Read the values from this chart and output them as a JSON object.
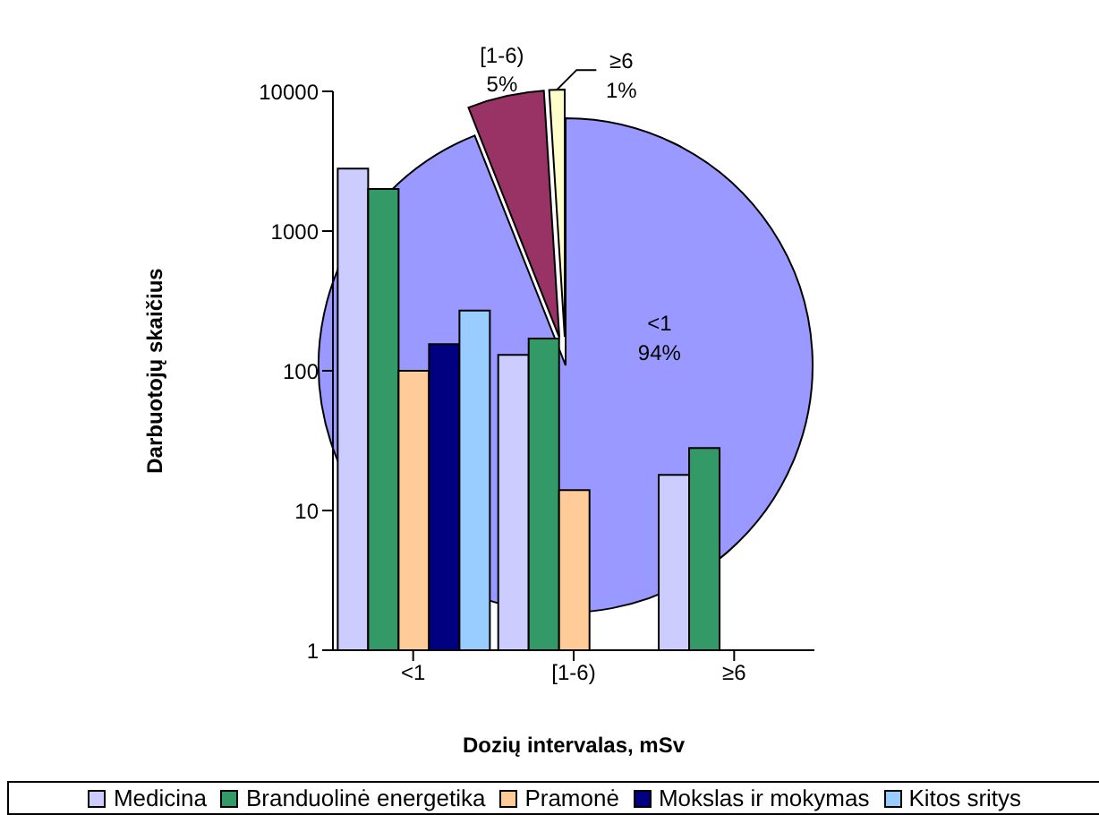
{
  "chart_data": [
    {
      "type": "bar",
      "xlabel": "Dozių intervalas, mSv",
      "ylabel": "Darbuotojų skaičius",
      "categories": [
        "<1",
        "[1-6)",
        "≥6"
      ],
      "log": "y",
      "ylim": [
        1,
        10000
      ],
      "yticks": [
        1,
        10,
        100,
        1000,
        10000
      ],
      "grid": false,
      "legend": "bottom",
      "series": [
        {
          "name": "Medicina",
          "color": "#ccccff",
          "values": [
            2800,
            130,
            18
          ]
        },
        {
          "name": "Branduolinė energetika",
          "color": "#339966",
          "values": [
            2000,
            170,
            28
          ]
        },
        {
          "name": "Pramonė",
          "color": "#ffcc99",
          "values": [
            100,
            14,
            null
          ]
        },
        {
          "name": "Mokslas ir mokymas",
          "color": "#000080",
          "values": [
            155,
            null,
            null
          ]
        },
        {
          "name": "Kitos sritys",
          "color": "#99ccff",
          "values": [
            270,
            null,
            null
          ]
        }
      ]
    },
    {
      "type": "pie",
      "categories": [
        "<1",
        "[1-6)",
        "≥6"
      ],
      "values": [
        94,
        5,
        1
      ],
      "value_labels": [
        "94%",
        "5%",
        "1%"
      ],
      "colors": [
        "#9999ff",
        "#993366",
        "#ffffcc"
      ]
    }
  ]
}
